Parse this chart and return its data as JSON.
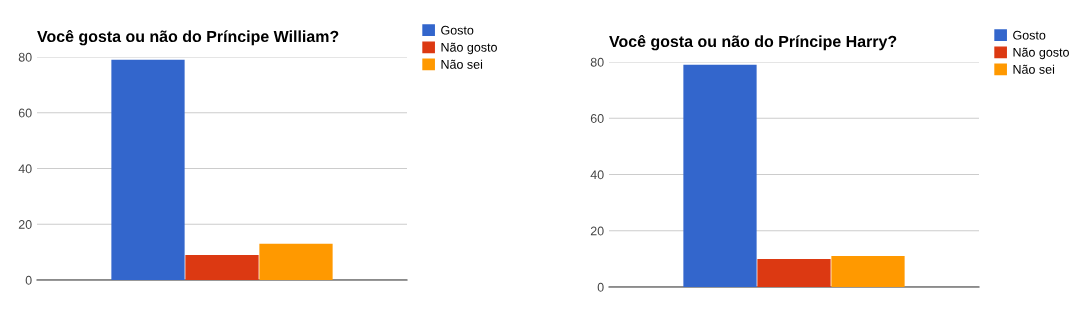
{
  "chart_data": [
    {
      "type": "bar",
      "title": "Você gosta ou não do Príncipe William?",
      "categories": [
        null
      ],
      "ylim": [
        0,
        80
      ],
      "yticks": [
        0,
        20,
        40,
        60,
        80
      ],
      "grid": "y",
      "legend": "top right",
      "series": [
        {
          "name": "Gosto",
          "color": "#3366cc",
          "values": [
            79
          ]
        },
        {
          "name": "Não gosto",
          "color": "#dc3912",
          "values": [
            9
          ]
        },
        {
          "name": "Não sei",
          "color": "#ff9900",
          "values": [
            13
          ]
        }
      ]
    },
    {
      "type": "bar",
      "title": "Você gosta ou não do Príncipe Harry?",
      "categories": [
        null
      ],
      "ylim": [
        0,
        80
      ],
      "yticks": [
        0,
        20,
        40,
        60,
        80
      ],
      "grid": "y",
      "legend": "top right",
      "series": [
        {
          "name": "Gosto",
          "color": "#3366cc",
          "values": [
            79
          ]
        },
        {
          "name": "Não gosto",
          "color": "#dc3912",
          "values": [
            10
          ]
        },
        {
          "name": "Não sei",
          "color": "#ff9900",
          "values": [
            11
          ]
        }
      ]
    }
  ]
}
